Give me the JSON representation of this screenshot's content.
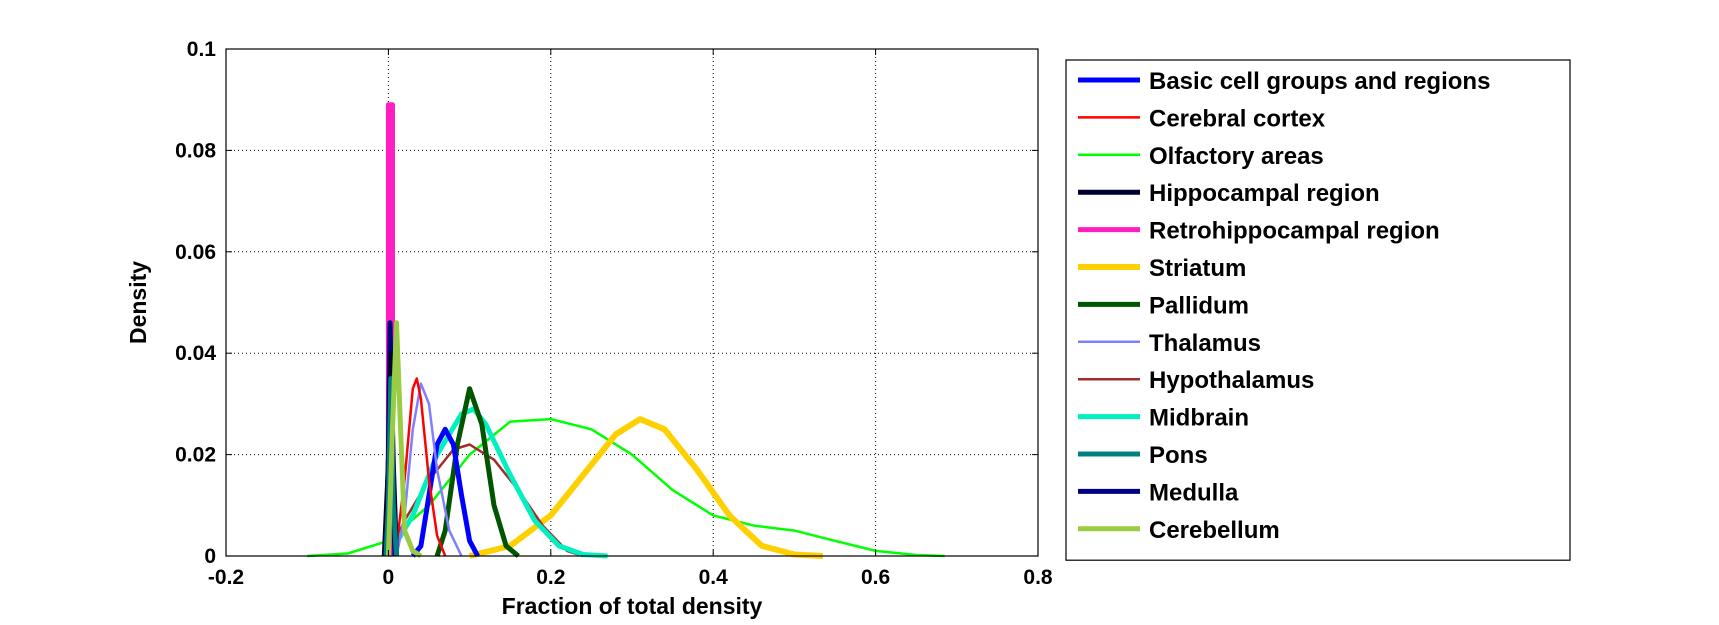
{
  "chart_data": {
    "type": "line",
    "xlabel": "Fraction of total density",
    "ylabel": "Density",
    "xlim": [
      -0.2,
      0.8
    ],
    "ylim": [
      0,
      0.1
    ],
    "xticks": [
      "-0.2",
      "0",
      "0.2",
      "0.4",
      "0.6",
      "0.8"
    ],
    "yticks": [
      "0",
      "0.02",
      "0.04",
      "0.06",
      "0.08",
      "0.1"
    ],
    "grid": true,
    "legend_position": "outside-right",
    "series": [
      {
        "name": "Basic cell groups and regions",
        "color": "#0000ff",
        "width": 5,
        "points": [
          [
            0.03,
            0
          ],
          [
            0.04,
            0.002
          ],
          [
            0.05,
            0.012
          ],
          [
            0.06,
            0.022
          ],
          [
            0.07,
            0.025
          ],
          [
            0.08,
            0.022
          ],
          [
            0.09,
            0.012
          ],
          [
            0.1,
            0.003
          ],
          [
            0.11,
            0
          ]
        ]
      },
      {
        "name": "Cerebral cortex",
        "color": "#ff0000",
        "width": 2.5,
        "points": [
          [
            0.0,
            0
          ],
          [
            0.01,
            0.002
          ],
          [
            0.02,
            0.015
          ],
          [
            0.03,
            0.033
          ],
          [
            0.035,
            0.035
          ],
          [
            0.04,
            0.031
          ],
          [
            0.05,
            0.015
          ],
          [
            0.06,
            0.004
          ],
          [
            0.07,
            0
          ]
        ]
      },
      {
        "name": "Olfactory areas",
        "color": "#00ff00",
        "width": 2.5,
        "points": [
          [
            -0.1,
            0
          ],
          [
            -0.05,
            0.0005
          ],
          [
            0.0,
            0.003
          ],
          [
            0.05,
            0.01
          ],
          [
            0.1,
            0.02
          ],
          [
            0.15,
            0.0265
          ],
          [
            0.2,
            0.027
          ],
          [
            0.25,
            0.025
          ],
          [
            0.3,
            0.02
          ],
          [
            0.35,
            0.013
          ],
          [
            0.4,
            0.008
          ],
          [
            0.45,
            0.006
          ],
          [
            0.5,
            0.005
          ],
          [
            0.55,
            0.003
          ],
          [
            0.6,
            0.001
          ],
          [
            0.65,
            0.0002
          ],
          [
            0.685,
            0
          ]
        ]
      },
      {
        "name": "Hippocampal region",
        "color": "#000033",
        "width": 5,
        "points": [
          [
            -0.005,
            0
          ],
          [
            0,
            0.018
          ],
          [
            0.003,
            0.04
          ],
          [
            0.006,
            0.018
          ],
          [
            0.01,
            0
          ]
        ]
      },
      {
        "name": "Retrohippocampal region",
        "color": "#ff1fbf",
        "width": 5,
        "points": [
          [
            0.0,
            0
          ],
          [
            0.0,
            0.089
          ],
          [
            0.005,
            0.089
          ],
          [
            0.005,
            0
          ]
        ]
      },
      {
        "name": "Striatum",
        "color": "#ffd000",
        "width": 6,
        "points": [
          [
            0.1,
            0
          ],
          [
            0.15,
            0.002
          ],
          [
            0.2,
            0.008
          ],
          [
            0.25,
            0.018
          ],
          [
            0.28,
            0.024
          ],
          [
            0.31,
            0.027
          ],
          [
            0.34,
            0.025
          ],
          [
            0.38,
            0.017
          ],
          [
            0.42,
            0.008
          ],
          [
            0.46,
            0.002
          ],
          [
            0.5,
            0.0003
          ],
          [
            0.535,
            0
          ]
        ]
      },
      {
        "name": "Pallidum",
        "color": "#005500",
        "width": 5,
        "points": [
          [
            0.06,
            0
          ],
          [
            0.07,
            0.005
          ],
          [
            0.085,
            0.022
          ],
          [
            0.1,
            0.033
          ],
          [
            0.115,
            0.026
          ],
          [
            0.13,
            0.01
          ],
          [
            0.145,
            0.002
          ],
          [
            0.16,
            0
          ]
        ]
      },
      {
        "name": "Thalamus",
        "color": "#8080ff",
        "width": 2.5,
        "points": [
          [
            0.01,
            0
          ],
          [
            0.02,
            0.008
          ],
          [
            0.03,
            0.025
          ],
          [
            0.04,
            0.034
          ],
          [
            0.05,
            0.03
          ],
          [
            0.06,
            0.017
          ],
          [
            0.075,
            0.005
          ],
          [
            0.09,
            0
          ]
        ]
      },
      {
        "name": "Hypothalamus",
        "color": "#a52a2a",
        "width": 2.5,
        "points": [
          [
            0.0,
            0
          ],
          [
            0.02,
            0.007
          ],
          [
            0.05,
            0.015
          ],
          [
            0.08,
            0.021
          ],
          [
            0.1,
            0.022
          ],
          [
            0.13,
            0.019
          ],
          [
            0.16,
            0.013
          ],
          [
            0.19,
            0.006
          ],
          [
            0.22,
            0.001
          ],
          [
            0.24,
            0
          ]
        ]
      },
      {
        "name": "Midbrain",
        "color": "#00f0c0",
        "width": 5,
        "points": [
          [
            0.0,
            0
          ],
          [
            0.03,
            0.008
          ],
          [
            0.06,
            0.02
          ],
          [
            0.09,
            0.028
          ],
          [
            0.105,
            0.029
          ],
          [
            0.12,
            0.026
          ],
          [
            0.15,
            0.016
          ],
          [
            0.18,
            0.007
          ],
          [
            0.21,
            0.002
          ],
          [
            0.24,
            0.0003
          ],
          [
            0.27,
            0
          ]
        ]
      },
      {
        "name": "Pons",
        "color": "#008080",
        "width": 5,
        "points": [
          [
            -0.003,
            0
          ],
          [
            0.0,
            0.01
          ],
          [
            0.003,
            0.035
          ],
          [
            0.006,
            0.01
          ],
          [
            0.01,
            0
          ]
        ]
      },
      {
        "name": "Medulla",
        "color": "#000080",
        "width": 5,
        "points": [
          [
            -0.003,
            0
          ],
          [
            0.0,
            0.02
          ],
          [
            0.002,
            0.046
          ],
          [
            0.005,
            0.02
          ],
          [
            0.008,
            0
          ]
        ]
      },
      {
        "name": "Cerebellum",
        "color": "#99cc44",
        "width": 5,
        "points": [
          [
            0.0,
            0
          ],
          [
            0.005,
            0.025
          ],
          [
            0.01,
            0.046
          ],
          [
            0.015,
            0.025
          ],
          [
            0.02,
            0.005
          ],
          [
            0.03,
            0.001
          ],
          [
            0.04,
            0
          ]
        ]
      }
    ]
  }
}
